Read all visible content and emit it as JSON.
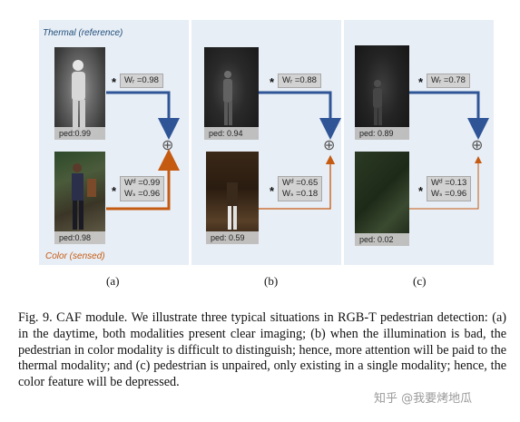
{
  "figure": {
    "thermal_label": "Thermal (reference)",
    "color_label": "Color (sensed)",
    "panels": [
      {
        "sublabel": "(a)",
        "thermal_ped": "ped:0.99",
        "color_ped": "ped:0.98",
        "wt": "Wᵣ =0.98",
        "wd": "Wᵈ =0.99",
        "ws": "Wₛ =0.96"
      },
      {
        "sublabel": "(b)",
        "thermal_ped": "ped: 0.94",
        "color_ped": "ped: 0.59",
        "wt": "Wᵣ =0.88",
        "wd": "Wᵈ =0.65",
        "ws": "Wₛ =0.18"
      },
      {
        "sublabel": "(c)",
        "thermal_ped": "ped: 0.89",
        "color_ped": "ped: 0.02",
        "wt": "Wᵣ =0.78",
        "wd": "Wᵈ =0.13",
        "ws": "Wₛ =0.96"
      }
    ],
    "star": "*",
    "oplus": "⊕",
    "colors": {
      "thermal_arrow": "#2f5597",
      "color_arrow": "#c55a11",
      "panel_bg": "#e8eef6"
    }
  },
  "caption": {
    "text": "Fig. 9.    CAF module. We illustrate three typical situations in RGB-T pedestrian detection: (a) in the daytime, both modalities present clear imaging; (b) when the illumination is bad, the pedestrian in color modality is difficult to distinguish; hence, more attention will be paid to the thermal modality; and (c) pedestrian is unpaired, only existing in a single modality; hence, the color feature will be depressed."
  },
  "watermark": "知乎 @我要烤地瓜"
}
